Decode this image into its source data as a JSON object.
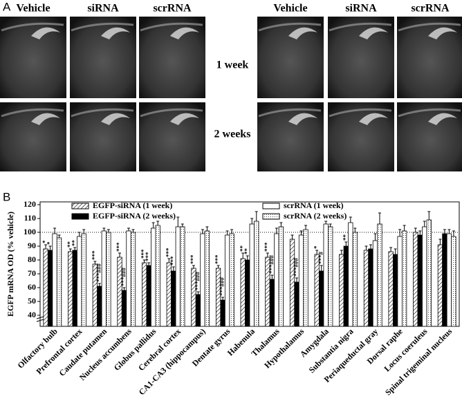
{
  "panel_a": {
    "label": "A",
    "columns_left": [
      "Vehicle",
      "siRNA",
      "scrRNA"
    ],
    "columns_right": [
      "Vehicle",
      "siRNA",
      "scrRNA"
    ],
    "rows": [
      "1 week",
      "2 weeks"
    ]
  },
  "chart_data": {
    "type": "bar",
    "panel_label": "B",
    "ylabel": "EGFP mRNA OD (% vehicle)",
    "categories": [
      "Olfactory bulb",
      "Prefrontal cortex",
      "Caudate putamen",
      "Nucleus accumbens",
      "Globus pallidus",
      "Cerebral cortex",
      "CA1-CA3 (hippocampus)",
      "Dentate gyrus",
      "Habenula",
      "Thalamus",
      "Hypothalamus",
      "Amygdala",
      "Substantia nigra",
      "Periaqueductal gray",
      "Dorsal raphe",
      "Locus coeruleus",
      "Spinal trigeminal nucleus"
    ],
    "series": [
      {
        "name": "EGFP-siRNA (1 week)",
        "fill": "hatch",
        "color": "#000000",
        "values": [
          88,
          86,
          77,
          82,
          78,
          78,
          74,
          74,
          81,
          82,
          95,
          84,
          84,
          87,
          86,
          100,
          91
        ],
        "errors": [
          3,
          2,
          2,
          3,
          2,
          3,
          2,
          2,
          4,
          3,
          3,
          3,
          3,
          3,
          3,
          3,
          4
        ],
        "significance": [
          "*",
          "**",
          "***",
          "***",
          "***",
          "***",
          "***",
          "***",
          "**",
          "***",
          null,
          "*",
          null,
          null,
          null,
          null,
          null
        ]
      },
      {
        "name": "EGFP-siRNA (2 weeks)",
        "fill": "solid",
        "color": "#000000",
        "values": [
          87,
          87,
          61,
          58,
          76,
          72,
          55,
          51,
          80,
          66,
          64,
          72,
          90,
          88,
          84,
          98,
          99
        ],
        "errors": [
          3,
          2,
          2,
          2,
          2,
          3,
          2,
          2,
          3,
          3,
          3,
          4,
          3,
          3,
          4,
          3,
          3
        ],
        "significance": [
          "*",
          "**",
          "***###",
          "***###",
          "***",
          "***",
          "***###",
          "***###",
          "**",
          "***###",
          "***###",
          "***#",
          "**",
          null,
          null,
          null,
          null
        ]
      },
      {
        "name": "scrRNA (1 week)",
        "fill": "none",
        "color": "#000000",
        "values": [
          99,
          97,
          101,
          101,
          103,
          104,
          99,
          98,
          106,
          99,
          98,
          106,
          107,
          94,
          97,
          104,
          99
        ],
        "errors": [
          4,
          3,
          2,
          2,
          4,
          7,
          3,
          3,
          4,
          4,
          3,
          2,
          4,
          5,
          5,
          4,
          3
        ]
      },
      {
        "name": "scrRNA (2 weeks)",
        "fill": "dots",
        "color": "#000000",
        "values": [
          96,
          99,
          100,
          100,
          105,
          104,
          101,
          99,
          108,
          104,
          102,
          104,
          100,
          106,
          101,
          109,
          97
        ],
        "errors": [
          2,
          3,
          2,
          2,
          3,
          2,
          3,
          3,
          7,
          3,
          3,
          2,
          3,
          8,
          4,
          6,
          4
        ]
      }
    ],
    "ylim": [
      32,
      122
    ],
    "yticks": [
      40,
      50,
      60,
      70,
      80,
      90,
      100,
      110,
      120
    ],
    "reference_line": 100
  }
}
